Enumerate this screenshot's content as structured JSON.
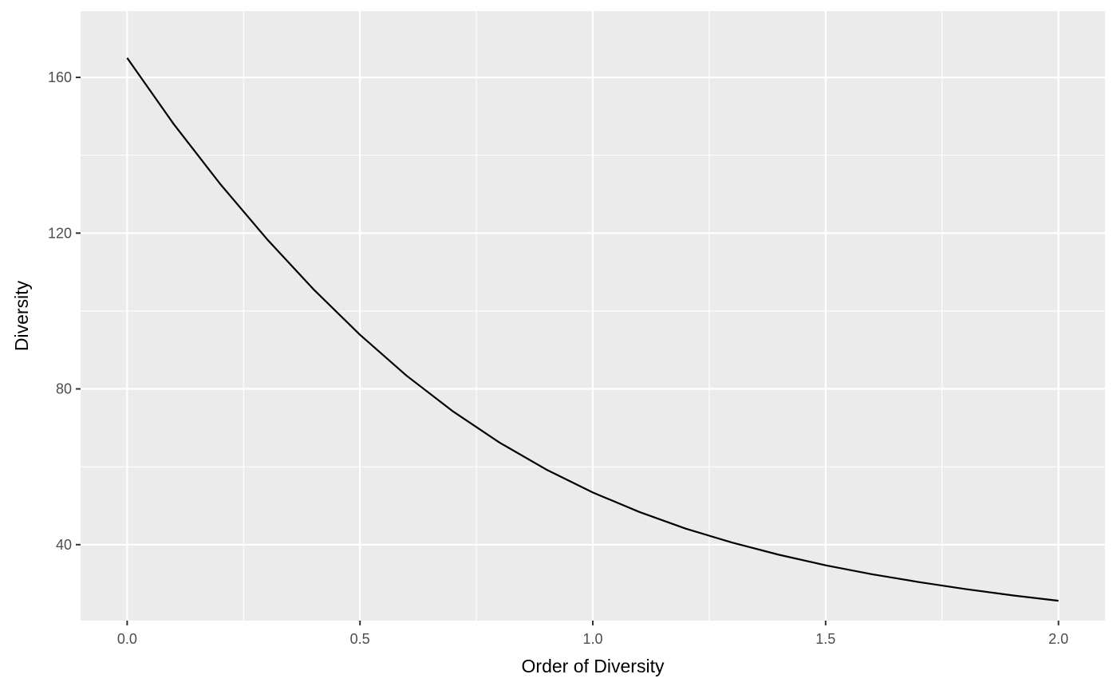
{
  "chart_data": {
    "type": "line",
    "title": "",
    "xlabel": "Order of Diversity",
    "ylabel": "Diversity",
    "xlim": [
      -0.1,
      2.1
    ],
    "ylim": [
      20.5,
      177
    ],
    "x_ticks": [
      0.0,
      0.5,
      1.0,
      1.5,
      2.0
    ],
    "x_tick_labels": [
      "0.0",
      "0.5",
      "1.0",
      "1.5",
      "2.0"
    ],
    "x_minor_ticks": [
      0.25,
      0.75,
      1.25,
      1.75
    ],
    "y_ticks": [
      40,
      80,
      120,
      160
    ],
    "y_tick_labels": [
      "40",
      "80",
      "120",
      "160"
    ],
    "y_minor_ticks": [
      60,
      100,
      140
    ],
    "grid": true,
    "background": "#ebebeb",
    "grid_color": "#ffffff",
    "line_color": "#000000",
    "series": [
      {
        "x": [
          0.0,
          0.1,
          0.2,
          0.3,
          0.4,
          0.5,
          0.6,
          0.7,
          0.8,
          0.9,
          1.0,
          1.1,
          1.2,
          1.3,
          1.4,
          1.5,
          1.6,
          1.7,
          1.8,
          1.9,
          2.0
        ],
        "y": [
          165.0,
          148.0,
          132.6,
          118.5,
          105.6,
          93.9,
          83.4,
          74.2,
          66.2,
          59.3,
          53.4,
          48.4,
          44.1,
          40.5,
          37.4,
          34.7,
          32.4,
          30.4,
          28.6,
          27.0,
          25.6
        ]
      }
    ]
  }
}
